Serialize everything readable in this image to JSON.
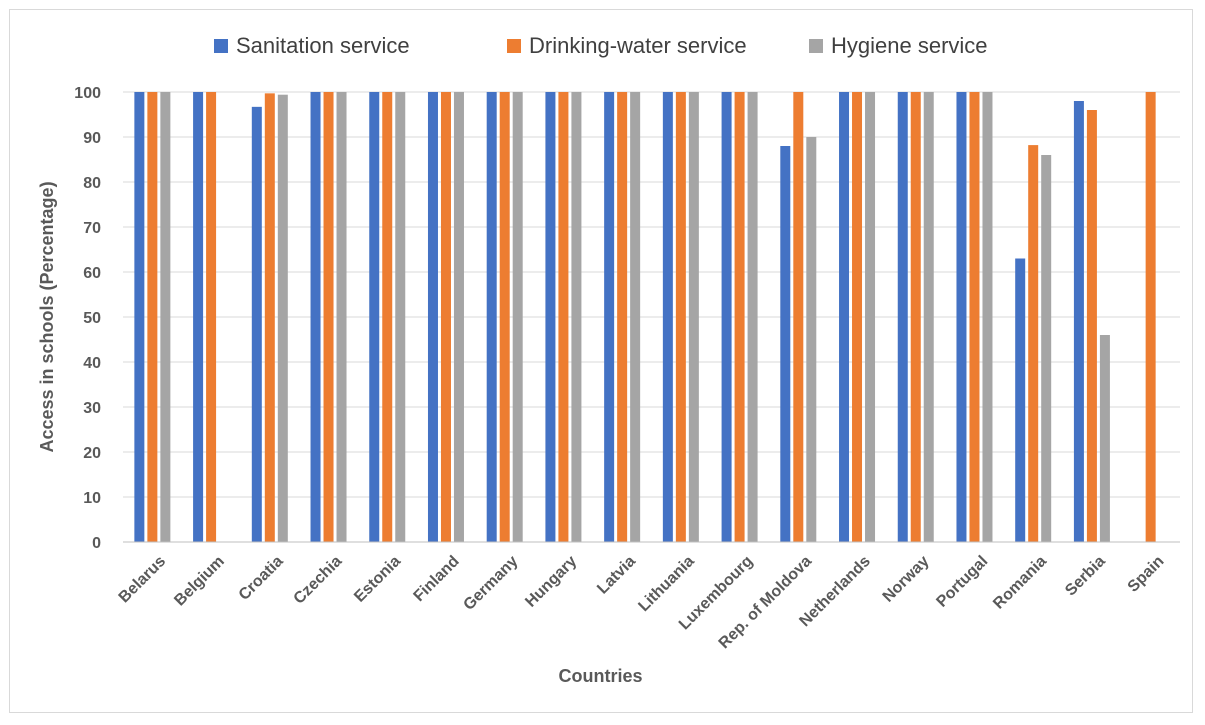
{
  "chart_data": {
    "type": "bar",
    "xlabel": "Countries",
    "ylabel": "Access in schools (Percentage)",
    "ylim": [
      0,
      100
    ],
    "yticks": [
      0,
      10,
      20,
      30,
      40,
      50,
      60,
      70,
      80,
      90,
      100
    ],
    "grid": true,
    "legend_position": "top",
    "categories": [
      "Belarus",
      "Belgium",
      "Croatia",
      "Czechia",
      "Estonia",
      "Finland",
      "Germany",
      "Hungary",
      "Latvia",
      "Lithuania",
      "Luxembourg",
      "Rep. of Moldova",
      "Netherlands",
      "Norway",
      "Portugal",
      "Romania",
      "Serbia",
      "Spain"
    ],
    "series": [
      {
        "name": "Sanitation service",
        "color": "#4472C4",
        "values": [
          100,
          100,
          96.7,
          100,
          100,
          100,
          100,
          100,
          100,
          100,
          100,
          88,
          100,
          100,
          100,
          63,
          98,
          null
        ]
      },
      {
        "name": "Drinking-water service",
        "color": "#ED7D31",
        "values": [
          100,
          100,
          99.7,
          100,
          100,
          100,
          100,
          100,
          100,
          100,
          100,
          100,
          100,
          100,
          100,
          88.2,
          96,
          100
        ]
      },
      {
        "name": "Hygiene service",
        "color": "#A5A5A5",
        "values": [
          100,
          null,
          99.4,
          100,
          100,
          100,
          100,
          100,
          100,
          100,
          100,
          90,
          100,
          100,
          100,
          86,
          46,
          null
        ]
      }
    ]
  },
  "colors": {
    "grid": "#d9d9d9",
    "axis": "#bfbfbf",
    "text": "#595959"
  }
}
